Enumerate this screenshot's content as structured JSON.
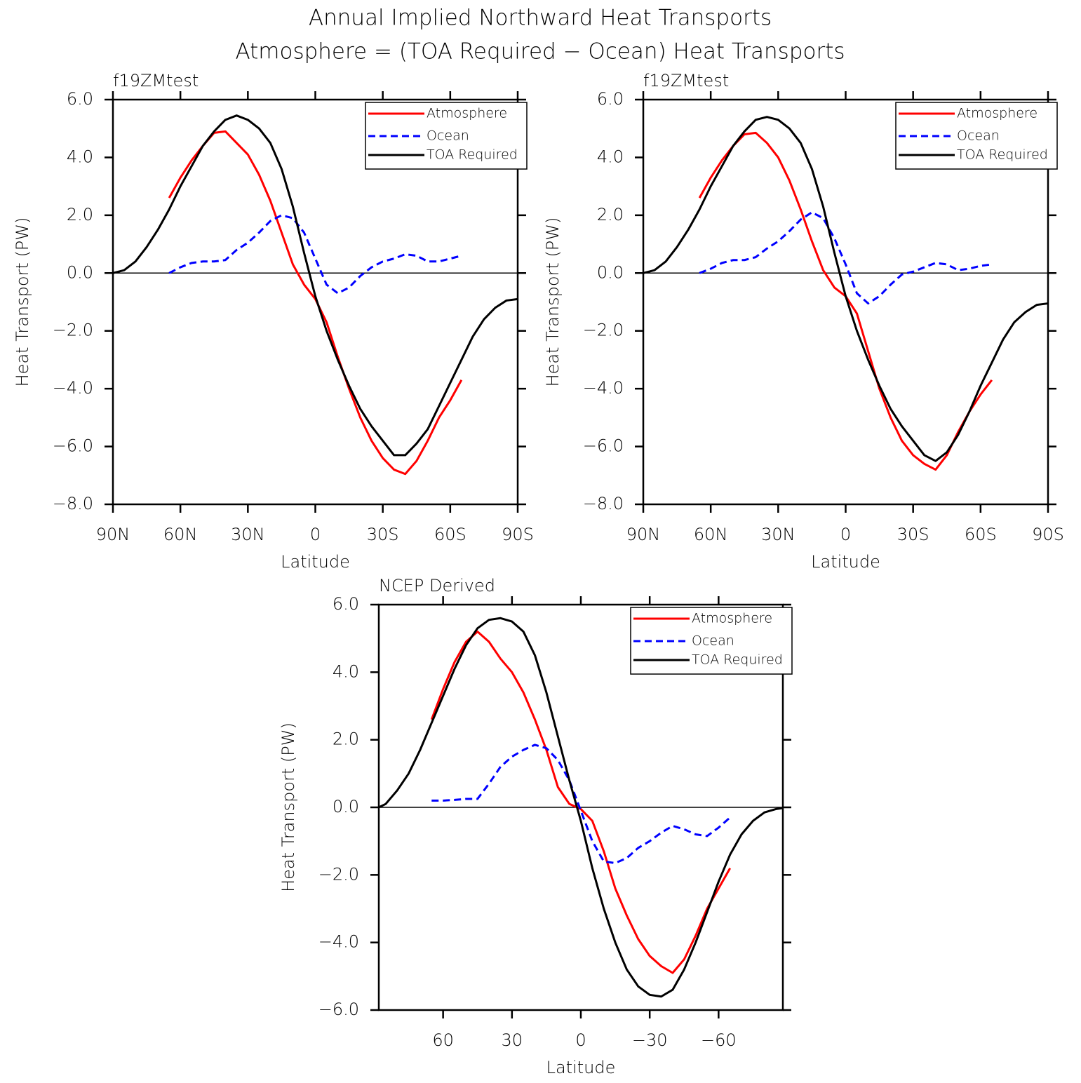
{
  "title": "Annual Implied Northward Heat Transports",
  "subtitle": "Atmosphere = (TOA Required − Ocean) Heat Transports",
  "chart_data": [
    {
      "type": "line",
      "title": "f19ZMtest",
      "xlabel": "Latitude",
      "ylabel": "Heat Transport (PW)",
      "x": [
        90,
        85,
        80,
        75,
        70,
        65,
        60,
        55,
        50,
        45,
        40,
        35,
        30,
        25,
        20,
        15,
        10,
        5,
        0,
        -5,
        -10,
        -15,
        -20,
        -25,
        -30,
        -35,
        -40,
        -45,
        -50,
        -55,
        -60,
        -65,
        -70,
        -75,
        -80,
        -85,
        -90
      ],
      "xlim": [
        90,
        -90
      ],
      "xticks": [
        {
          "value": 90,
          "label": "90N"
        },
        {
          "value": 60,
          "label": "60N"
        },
        {
          "value": 30,
          "label": "30N"
        },
        0,
        {
          "value": -30,
          "label": "30S"
        },
        {
          "value": -60,
          "label": "60S"
        },
        {
          "value": -90,
          "label": "90S"
        }
      ],
      "ylim": [
        -8,
        6
      ],
      "yticks": [
        {
          "value": -8,
          "label": "−8.0"
        },
        {
          "value": -6,
          "label": "−6.0"
        },
        {
          "value": -4,
          "label": "−4.0"
        },
        {
          "value": -2,
          "label": "−2.0"
        },
        {
          "value": 0,
          "label": "0.0"
        },
        {
          "value": 2,
          "label": "2.0"
        },
        {
          "value": 4,
          "label": "4.0"
        },
        {
          "value": 6,
          "label": "6.0"
        }
      ],
      "legend": "upper right",
      "series": [
        {
          "name": "Atmosphere",
          "color": "#ff0000",
          "linestyle": "solid",
          "values": [
            null,
            null,
            null,
            null,
            null,
            2.6,
            3.3,
            3.9,
            4.4,
            4.85,
            4.9,
            4.5,
            4.1,
            3.4,
            2.5,
            1.4,
            0.3,
            -0.4,
            -0.9,
            -1.7,
            -2.9,
            -4.0,
            -5.0,
            -5.8,
            -6.4,
            -6.8,
            -6.95,
            -6.5,
            -5.8,
            -5.0,
            -4.4,
            -3.7,
            null,
            null,
            null,
            null,
            null
          ]
        },
        {
          "name": "Ocean",
          "color": "#0000ff",
          "linestyle": "dashed",
          "values": [
            null,
            null,
            null,
            null,
            null,
            0.0,
            0.2,
            0.35,
            0.4,
            0.4,
            0.45,
            0.8,
            1.05,
            1.4,
            1.8,
            2.0,
            1.9,
            1.4,
            0.5,
            -0.4,
            -0.7,
            -0.5,
            -0.1,
            0.2,
            0.4,
            0.5,
            0.65,
            0.6,
            0.4,
            0.4,
            0.5,
            0.6,
            null,
            null,
            null,
            null,
            null
          ]
        },
        {
          "name": "TOA Required",
          "color": "#000000",
          "linestyle": "solid",
          "values": [
            0,
            0.1,
            0.4,
            0.9,
            1.5,
            2.2,
            3.0,
            3.7,
            4.4,
            4.9,
            5.3,
            5.45,
            5.3,
            5.0,
            4.5,
            3.6,
            2.3,
            0.7,
            -0.8,
            -2.0,
            -3.0,
            -3.9,
            -4.7,
            -5.3,
            -5.8,
            -6.3,
            -6.3,
            -5.9,
            -5.4,
            -4.6,
            -3.8,
            -3.0,
            -2.2,
            -1.6,
            -1.2,
            -0.95,
            -0.9
          ]
        }
      ]
    },
    {
      "type": "line",
      "title": "f19ZMtest",
      "xlabel": "Latitude",
      "ylabel": "Heat Transport (PW)",
      "x": [
        90,
        85,
        80,
        75,
        70,
        65,
        60,
        55,
        50,
        45,
        40,
        35,
        30,
        25,
        20,
        15,
        10,
        5,
        0,
        -5,
        -10,
        -15,
        -20,
        -25,
        -30,
        -35,
        -40,
        -45,
        -50,
        -55,
        -60,
        -65,
        -70,
        -75,
        -80,
        -85,
        -90
      ],
      "xlim": [
        90,
        -90
      ],
      "xticks": [
        {
          "value": 90,
          "label": "90N"
        },
        {
          "value": 60,
          "label": "60N"
        },
        {
          "value": 30,
          "label": "30N"
        },
        0,
        {
          "value": -30,
          "label": "30S"
        },
        {
          "value": -60,
          "label": "60S"
        },
        {
          "value": -90,
          "label": "90S"
        }
      ],
      "ylim": [
        -8,
        6
      ],
      "yticks": [
        {
          "value": -8,
          "label": "−8.0"
        },
        {
          "value": -6,
          "label": "−6.0"
        },
        {
          "value": -4,
          "label": "−4.0"
        },
        {
          "value": -2,
          "label": "−2.0"
        },
        {
          "value": 0,
          "label": "0.0"
        },
        {
          "value": 2,
          "label": "2.0"
        },
        {
          "value": 4,
          "label": "4.0"
        },
        {
          "value": 6,
          "label": "6.0"
        }
      ],
      "legend": "upper right",
      "series": [
        {
          "name": "Atmosphere",
          "color": "#ff0000",
          "linestyle": "solid",
          "values": [
            null,
            null,
            null,
            null,
            null,
            2.6,
            3.3,
            3.9,
            4.4,
            4.8,
            4.85,
            4.5,
            4.0,
            3.2,
            2.2,
            1.1,
            0.1,
            -0.5,
            -0.8,
            -1.4,
            -2.7,
            -4.0,
            -5.0,
            -5.8,
            -6.3,
            -6.6,
            -6.8,
            -6.3,
            -5.5,
            -4.8,
            -4.2,
            -3.7,
            null,
            null,
            null,
            null,
            null
          ]
        },
        {
          "name": "Ocean",
          "color": "#0000ff",
          "linestyle": "dashed",
          "values": [
            null,
            null,
            null,
            null,
            null,
            0,
            0.15,
            0.35,
            0.45,
            0.45,
            0.55,
            0.85,
            1.1,
            1.45,
            1.85,
            2.1,
            1.9,
            1.2,
            0.3,
            -0.7,
            -1.05,
            -0.8,
            -0.4,
            -0.05,
            0.05,
            0.2,
            0.35,
            0.3,
            0.1,
            0.15,
            0.25,
            0.3,
            null,
            null,
            null,
            null,
            null
          ]
        },
        {
          "name": "TOA Required",
          "color": "#000000",
          "linestyle": "solid",
          "values": [
            0,
            0.1,
            0.4,
            0.9,
            1.5,
            2.2,
            3.0,
            3.7,
            4.4,
            4.9,
            5.3,
            5.4,
            5.3,
            5.0,
            4.5,
            3.6,
            2.3,
            0.7,
            -0.8,
            -2.0,
            -3.0,
            -3.9,
            -4.7,
            -5.3,
            -5.8,
            -6.3,
            -6.5,
            -6.2,
            -5.6,
            -4.8,
            -3.9,
            -3.1,
            -2.3,
            -1.7,
            -1.35,
            -1.1,
            -1.05
          ]
        }
      ]
    },
    {
      "type": "line",
      "title": "NCEP Derived",
      "xlabel": "Latitude",
      "ylabel": "Heat Transport (PW)",
      "x": [
        88,
        85,
        80,
        75,
        70,
        65,
        60,
        55,
        50,
        45,
        40,
        35,
        30,
        25,
        20,
        15,
        10,
        5,
        0,
        -5,
        -10,
        -15,
        -20,
        -25,
        -30,
        -35,
        -40,
        -45,
        -50,
        -55,
        -60,
        -65,
        -70,
        -75,
        -80,
        -85,
        -88
      ],
      "xlim": [
        88,
        -88
      ],
      "xticks": [
        60,
        30,
        0,
        {
          "value": -30,
          "label": "−30"
        },
        {
          "value": -60,
          "label": "−60"
        }
      ],
      "ylim": [
        -6,
        6
      ],
      "yticks": [
        {
          "value": -6,
          "label": "−6.0"
        },
        {
          "value": -4,
          "label": "−4.0"
        },
        {
          "value": -2,
          "label": "−2.0"
        },
        {
          "value": 0,
          "label": "0.0"
        },
        {
          "value": 2,
          "label": "2.0"
        },
        {
          "value": 4,
          "label": "4.0"
        },
        {
          "value": 6,
          "label": "6.0"
        }
      ],
      "legend": "upper right",
      "series": [
        {
          "name": "Atmosphere",
          "color": "#ff0000",
          "linestyle": "solid",
          "values": [
            null,
            null,
            null,
            null,
            null,
            2.6,
            3.5,
            4.3,
            4.9,
            5.2,
            4.9,
            4.4,
            4.0,
            3.4,
            2.6,
            1.7,
            0.6,
            0.1,
            -0.05,
            -0.4,
            -1.3,
            -2.4,
            -3.2,
            -3.9,
            -4.4,
            -4.7,
            -4.9,
            -4.5,
            -3.8,
            -3.0,
            -2.4,
            -1.8,
            null,
            null,
            null,
            null,
            null
          ]
        },
        {
          "name": "Ocean",
          "color": "#0000ff",
          "linestyle": "dashed",
          "values": [
            null,
            null,
            null,
            null,
            null,
            0.2,
            0.2,
            0.22,
            0.25,
            0.25,
            0.7,
            1.2,
            1.5,
            1.7,
            1.85,
            1.75,
            1.4,
            0.8,
            -0.1,
            -1.0,
            -1.6,
            -1.65,
            -1.5,
            -1.2,
            -1.0,
            -0.75,
            -0.55,
            -0.65,
            -0.8,
            -0.85,
            -0.6,
            -0.3,
            null,
            null,
            null,
            null,
            null
          ]
        },
        {
          "name": "TOA Required",
          "color": "#000000",
          "linestyle": "solid",
          "values": [
            0,
            0.1,
            0.5,
            1.0,
            1.7,
            2.5,
            3.3,
            4.1,
            4.8,
            5.3,
            5.55,
            5.6,
            5.5,
            5.2,
            4.5,
            3.4,
            2.1,
            0.8,
            -0.4,
            -1.8,
            -3.0,
            -4.0,
            -4.8,
            -5.3,
            -5.55,
            -5.6,
            -5.4,
            -4.8,
            -4.0,
            -3.1,
            -2.2,
            -1.4,
            -0.8,
            -0.4,
            -0.15,
            -0.05,
            -0.02
          ]
        }
      ]
    }
  ]
}
